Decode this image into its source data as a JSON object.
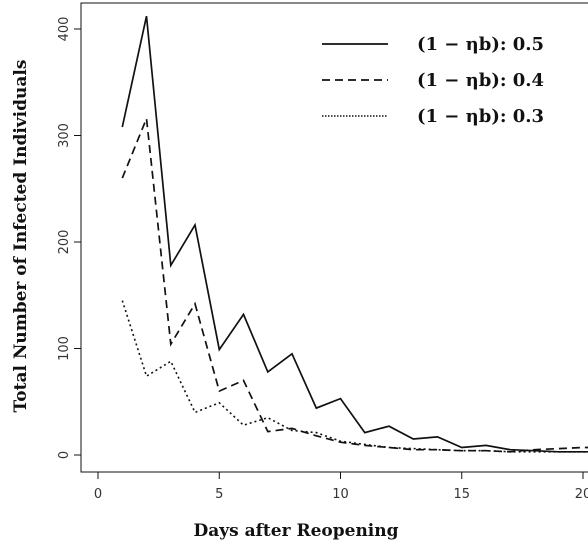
{
  "chart_data": {
    "type": "line",
    "xlabel": "Days after Reopening",
    "ylabel": "Total Number of Infected Individuals",
    "xlim": [
      0,
      20
    ],
    "ylim": [
      0,
      400
    ],
    "x_ticks": [
      "0",
      "5",
      "10",
      "15",
      "20"
    ],
    "y_ticks": [
      "0",
      "100",
      "200",
      "300",
      "400"
    ],
    "grid": false,
    "legend_position": "top-right",
    "x": [
      1,
      2,
      3,
      4,
      5,
      6,
      7,
      8,
      9,
      10,
      11,
      12,
      13,
      14,
      15,
      16,
      17,
      18,
      19,
      20,
      21
    ],
    "series": [
      {
        "name": "(1 − ηb): 0.5",
        "line_style": "solid",
        "values": [
          308,
          412,
          178,
          216,
          99,
          132,
          78,
          95,
          44,
          53,
          21,
          27,
          15,
          17,
          7,
          9,
          5,
          4,
          3,
          3,
          3
        ]
      },
      {
        "name": "(1 − ηb): 0.4",
        "line_style": "dashed",
        "values": [
          260,
          316,
          104,
          142,
          60,
          70,
          22,
          25,
          18,
          12,
          9,
          7,
          5,
          5,
          4,
          4,
          3,
          5,
          6,
          7,
          7
        ]
      },
      {
        "name": "(1 − ηb): 0.3",
        "line_style": "dotted",
        "values": [
          145,
          74,
          88,
          40,
          49,
          28,
          35,
          23,
          21,
          13,
          10,
          7,
          6,
          5,
          4,
          4,
          3,
          3,
          3,
          3,
          3
        ]
      }
    ]
  }
}
